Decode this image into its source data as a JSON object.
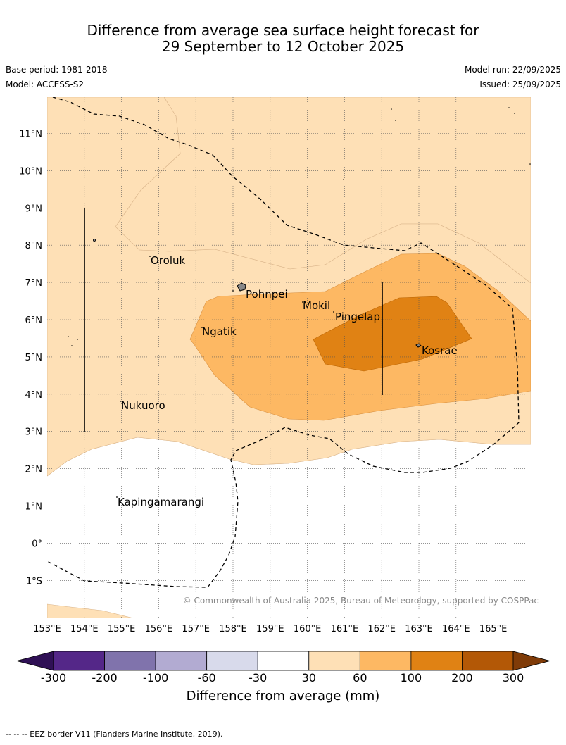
{
  "title": {
    "line1": "Difference from average sea surface height forecast for",
    "line2": "29 September to 12 October 2025"
  },
  "meta": {
    "base_period": "Base period: 1981-2018",
    "model": "Model: ACCESS-S2",
    "model_run": "Model run: 22/09/2025",
    "issued": "Issued: 25/09/2025"
  },
  "map": {
    "lat_labels": [
      "11°N",
      "10°N",
      "9°N",
      "8°N",
      "7°N",
      "6°N",
      "5°N",
      "4°N",
      "3°N",
      "2°N",
      "1°N",
      "0°",
      "1°S"
    ],
    "lon_labels": [
      "153°E",
      "154°E",
      "155°E",
      "156°E",
      "157°E",
      "158°E",
      "159°E",
      "160°E",
      "161°E",
      "162°E",
      "163°E",
      "164°E",
      "165°E"
    ],
    "places": [
      {
        "name": "Oroluk"
      },
      {
        "name": "Pohnpei"
      },
      {
        "name": "Mokil"
      },
      {
        "name": "Pingelap"
      },
      {
        "name": "Ngatik"
      },
      {
        "name": "Kosrae"
      },
      {
        "name": "Nukuoro"
      },
      {
        "name": "Kapingamarangi"
      }
    ],
    "copyright": "© Commonwealth of Australia 2025, Bureau of Meteorology, supported by COSPPac"
  },
  "colorbar": {
    "labels": [
      "-300",
      "-200",
      "-100",
      "-60",
      "-30",
      "30",
      "60",
      "100",
      "200",
      "300"
    ],
    "colors": [
      "#2f1055",
      "#542788",
      "#8073ac",
      "#b2abd2",
      "#d8daeb",
      "#ffffff",
      "#fee0b6",
      "#fdb863",
      "#e08214",
      "#b35806",
      "#7f3b08"
    ],
    "title": "Difference from average (mm)"
  },
  "footer": "--  --  -- EEZ border V11 (Flanders Marine Institute, 2019)."
}
